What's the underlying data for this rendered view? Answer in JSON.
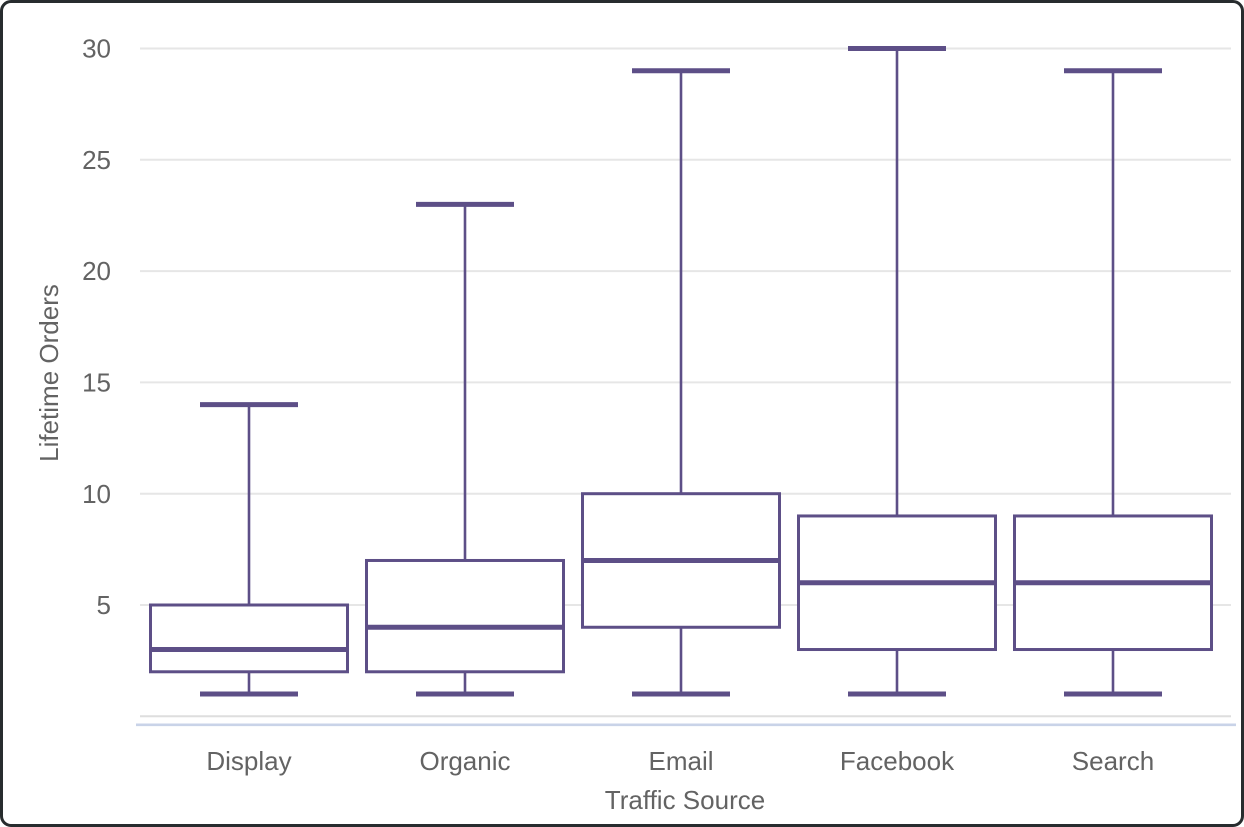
{
  "chart_data": {
    "type": "box",
    "title": "",
    "xlabel": "Traffic Source",
    "ylabel": "Lifetime Orders",
    "categories": [
      "Display",
      "Organic",
      "Email",
      "Facebook",
      "Search"
    ],
    "series": [
      {
        "name": "Display",
        "min": 1,
        "q1": 2,
        "median": 3,
        "q3": 5,
        "max": 14
      },
      {
        "name": "Organic",
        "min": 1,
        "q1": 2,
        "median": 4,
        "q3": 7,
        "max": 23
      },
      {
        "name": "Email",
        "min": 1,
        "q1": 4,
        "median": 7,
        "q3": 10,
        "max": 29
      },
      {
        "name": "Facebook",
        "min": 1,
        "q1": 3,
        "median": 6,
        "q3": 9,
        "max": 30
      },
      {
        "name": "Search",
        "min": 1,
        "q1": 3,
        "median": 6,
        "q3": 9,
        "max": 29
      }
    ],
    "ylim": [
      0,
      30
    ],
    "yticks": [
      5,
      10,
      15,
      20,
      25,
      30
    ],
    "grid": true,
    "legend": "none",
    "colors": {
      "box_stroke": "#5d4f87",
      "box_fill": "#ffffff",
      "gridline": "#e6e6e6",
      "zero_line": "#dedede",
      "baseline_accent": "#c9d3e8",
      "label_text": "#636363",
      "card_border": "#272c2e"
    }
  }
}
